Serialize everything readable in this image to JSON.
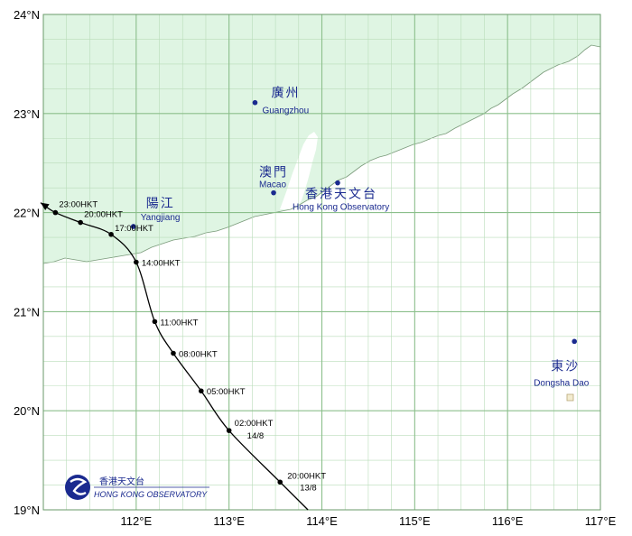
{
  "map": {
    "lon_range": [
      111,
      117
    ],
    "lat_range": [
      19,
      24
    ],
    "minor_step_deg": 0.25,
    "major_step_deg": 1,
    "colors": {
      "land": "#dff5e3",
      "sea": "#ffffff",
      "grid_major": "#8bbf8b",
      "grid_minor": "#b9dcb9",
      "track": "#000000",
      "place": "#1a2a8f"
    },
    "x_tick_labels": [
      {
        "lon": 112,
        "label": "112°E"
      },
      {
        "lon": 113,
        "label": "113°E"
      },
      {
        "lon": 114,
        "label": "114°E"
      },
      {
        "lon": 115,
        "label": "115°E"
      },
      {
        "lon": 116,
        "label": "116°E"
      },
      {
        "lon": 117,
        "label": "117°E"
      }
    ],
    "y_tick_labels": [
      {
        "lat": 24,
        "label": "24°N"
      },
      {
        "lat": 23,
        "label": "23°N"
      },
      {
        "lat": 22,
        "label": "22°N"
      },
      {
        "lat": 21,
        "label": "21°N"
      },
      {
        "lat": 20,
        "label": "20°N"
      },
      {
        "lat": 19,
        "label": "19°N"
      }
    ],
    "places": [
      {
        "id": "guangzhou",
        "zh": "廣州",
        "en": "Guangzhou",
        "lon": 113.28,
        "lat": 23.11
      },
      {
        "id": "macao",
        "zh": "澳門",
        "en": "Macao",
        "lon": 113.48,
        "lat": 22.2
      },
      {
        "id": "hko",
        "zh": "香港天文台",
        "en": "Hong Kong Observatory",
        "lon": 114.17,
        "lat": 22.3
      },
      {
        "id": "yangjiang",
        "zh": "陽江",
        "en": "Yangjiang",
        "lon": 111.97,
        "lat": 21.86
      },
      {
        "id": "dongsha",
        "zh": "東沙",
        "en": "Dongsha Dao",
        "lon": 116.72,
        "lat": 20.7
      }
    ],
    "track": [
      {
        "lon": 113.85,
        "lat": 19.0,
        "label": ""
      },
      {
        "lon": 113.55,
        "lat": 19.28,
        "label": "20:00HKT",
        "date": "13/8"
      },
      {
        "lon": 113.0,
        "lat": 19.8,
        "label": "02:00HKT",
        "date": "14/8"
      },
      {
        "lon": 112.7,
        "lat": 20.2,
        "label": "05:00HKT"
      },
      {
        "lon": 112.4,
        "lat": 20.58,
        "label": "08:00HKT"
      },
      {
        "lon": 112.2,
        "lat": 20.9,
        "label": "11:00HKT"
      },
      {
        "lon": 112.0,
        "lat": 21.5,
        "label": "14:00HKT"
      },
      {
        "lon": 111.73,
        "lat": 21.78,
        "label": "17:00HKT"
      },
      {
        "lon": 111.4,
        "lat": 21.9,
        "label": "20:00HKT"
      },
      {
        "lon": 111.13,
        "lat": 22.0,
        "label": "23:00HKT"
      },
      {
        "lon": 110.97,
        "lat": 22.1,
        "label": ""
      }
    ],
    "logo": {
      "zh": "香港天文台",
      "en": "HONG KONG OBSERVATORY"
    }
  }
}
